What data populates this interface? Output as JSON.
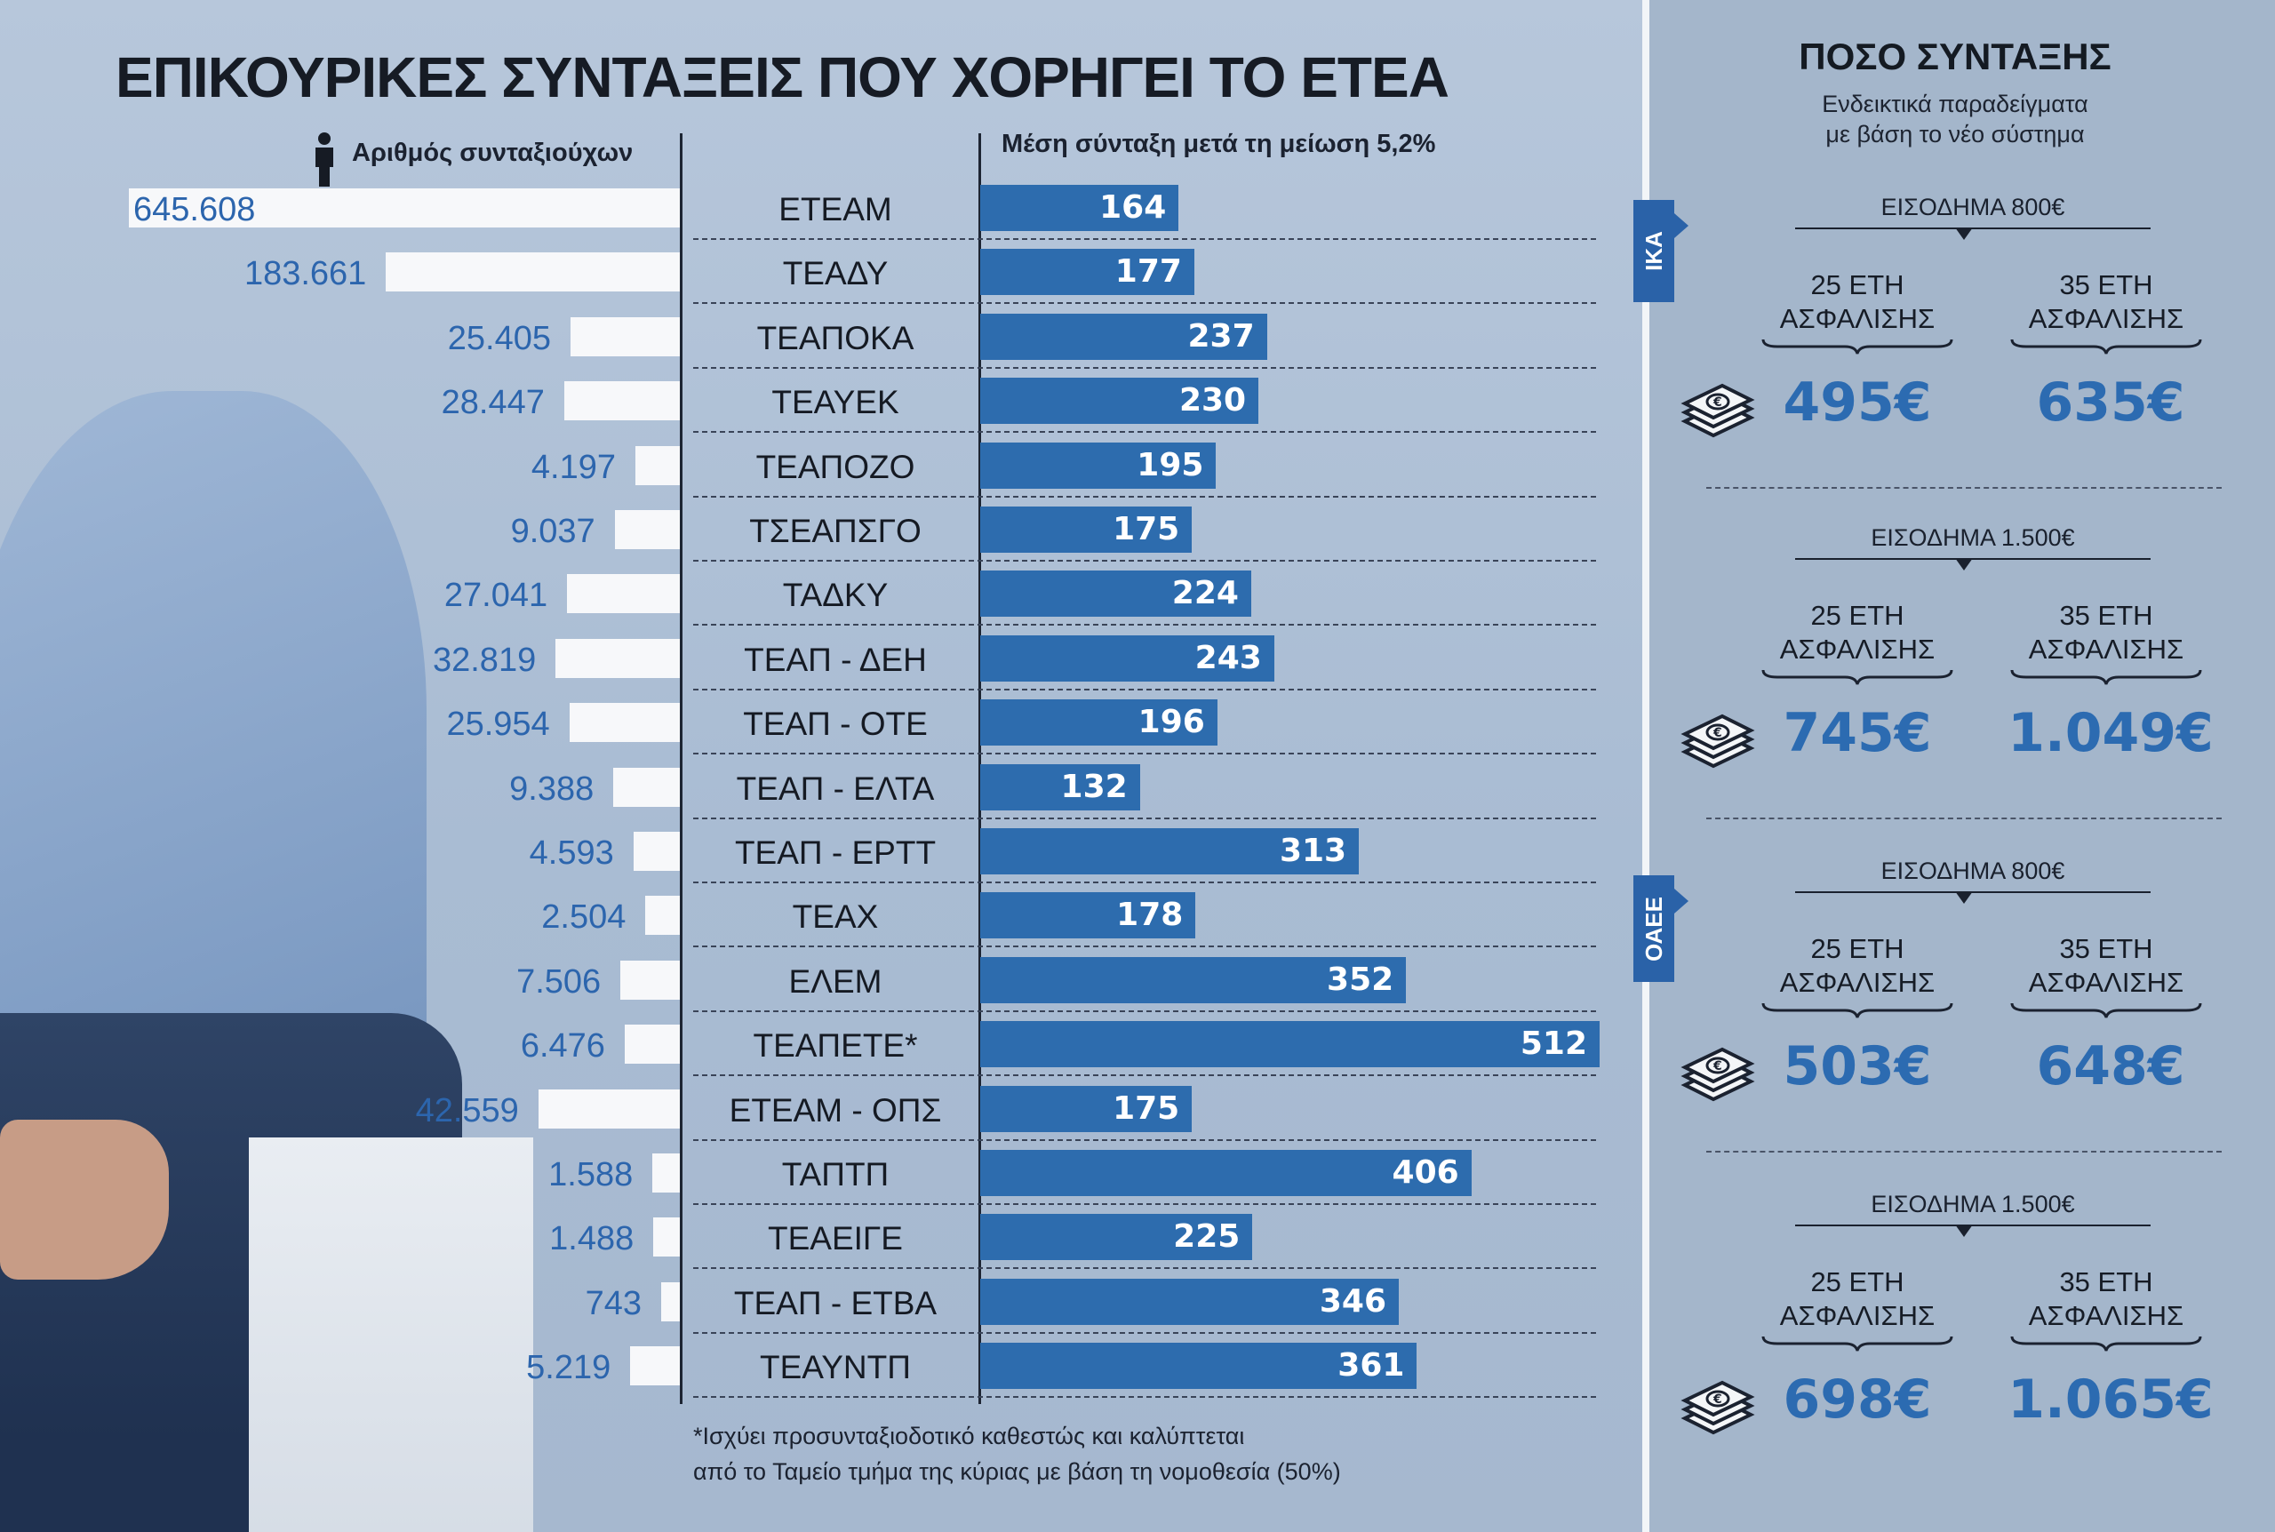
{
  "headline": "ΕΠΙΚΟΥΡΙΚΕΣ ΣΥΝΤΑΞΕΙΣ ΠΟΥ ΧΟΡΗΓΕΙ ΤΟ ΕΤΕΑ",
  "left_header": "Αριθμός συνταξιούχων",
  "right_header": "Μέση σύνταξη μετά τη μείωση 5,2%",
  "footnote_1": "*Ισχύει προσυνταξιοδοτικό καθεστώς και καλύπτεται",
  "footnote_2": "από το Ταμείο τμήμα της κύριας με βάση τη νομοθεσία (50%)",
  "icons": {
    "person": "person-icon",
    "money": "money-stack-icon"
  },
  "colors": {
    "bar": "#2d6cae",
    "count_text": "#2c65ad",
    "amount_text": "#2c6bb1",
    "tab": "#2a62a8"
  },
  "chart_data": {
    "type": "bar",
    "title": "ΕΠΙΚΟΥΡΙΚΕΣ ΣΥΝΤΑΞΕΙΣ ΠΟΥ ΧΟΡΗΓΕΙ ΤΟ ΕΤΕΑ",
    "orientation": "horizontal",
    "categories": [
      "ΕΤΕΑΜ",
      "ΤΕΑΔΥ",
      "ΤΕΑΠΟΚΑ",
      "ΤΕΑΥΕΚ",
      "ΤΕΑΠΟΖΟ",
      "ΤΣΕΑΠΣΓΟ",
      "ΤΑΔΚΥ",
      "ΤΕΑΠ - ΔΕΗ",
      "ΤΕΑΠ - ΟΤΕ",
      "ΤΕΑΠ - ΕΛΤΑ",
      "ΤΕΑΠ - ΕΡΤΤ",
      "ΤΕΑΧ",
      "ΕΛΕΜ",
      "ΤΕΑΠΕΤΕ*",
      "ΕΤΕΑΜ - ΟΠΣ",
      "ΤΑΠΤΠ",
      "ΤΕΑΕΙΓΕ",
      "ΤΕΑΠ - ΕΤΒΑ",
      "ΤΕΑΥΝΤΠ"
    ],
    "series": [
      {
        "name": "Αριθμός συνταξιούχων",
        "values": [
          645608,
          183661,
          25405,
          28447,
          4197,
          9037,
          27041,
          32819,
          25954,
          9388,
          4593,
          2504,
          7506,
          6476,
          42559,
          1588,
          1488,
          743,
          5219
        ],
        "labels": [
          "645.608",
          "183.661",
          "25.405",
          "28.447",
          "4.197",
          "9.037",
          "27.041",
          "32.819",
          "25.954",
          "9.388",
          "4.593",
          "2.504",
          "7.506",
          "6.476",
          "42.559",
          "1.588",
          "1.488",
          "743",
          "5.219"
        ]
      },
      {
        "name": "Μέση σύνταξη μετά τη μείωση 5,2%",
        "values": [
          164,
          177,
          237,
          230,
          195,
          175,
          224,
          243,
          196,
          132,
          313,
          178,
          352,
          512,
          175,
          406,
          225,
          346,
          361
        ]
      }
    ]
  },
  "side": {
    "title": "ΠΟΣΟ ΣΥΝΤΑΞΗΣ",
    "subtitle_1": "Ενδεικτικά παραδείγματα",
    "subtitle_2": "με βάση το νέο σύστημα",
    "tab_ika": "ΙΚΑ",
    "tab_oaee": "ΟΑΕΕ",
    "examples": [
      {
        "income": "ΕΙΣΟΔΗΜΑ 800€",
        "left_years": "25 ΕΤΗ",
        "left_sub": "ΑΣΦΑΛΙΣΗΣ",
        "left_amount": "495€",
        "right_years": "35 ΕΤΗ",
        "right_sub": "ΑΣΦΑΛΙΣΗΣ",
        "right_amount": "635€"
      },
      {
        "income": "ΕΙΣΟΔΗΜΑ 1.500€",
        "left_years": "25 ΕΤΗ",
        "left_sub": "ΑΣΦΑΛΙΣΗΣ",
        "left_amount": "745€",
        "right_years": "35 ΕΤΗ",
        "right_sub": "ΑΣΦΑΛΙΣΗΣ",
        "right_amount": "1.049€"
      },
      {
        "income": "ΕΙΣΟΔΗΜΑ 800€",
        "left_years": "25 ΕΤΗ",
        "left_sub": "ΑΣΦΑΛΙΣΗΣ",
        "left_amount": "503€",
        "right_years": "35 ΕΤΗ",
        "right_sub": "ΑΣΦΑΛΙΣΗΣ",
        "right_amount": "648€"
      },
      {
        "income": "ΕΙΣΟΔΗΜΑ 1.500€",
        "left_years": "25 ΕΤΗ",
        "left_sub": "ΑΣΦΑΛΙΣΗΣ",
        "left_amount": "698€",
        "right_years": "35 ΕΤΗ",
        "right_sub": "ΑΣΦΑΛΙΣΗΣ",
        "right_amount": "1.065€"
      }
    ]
  }
}
